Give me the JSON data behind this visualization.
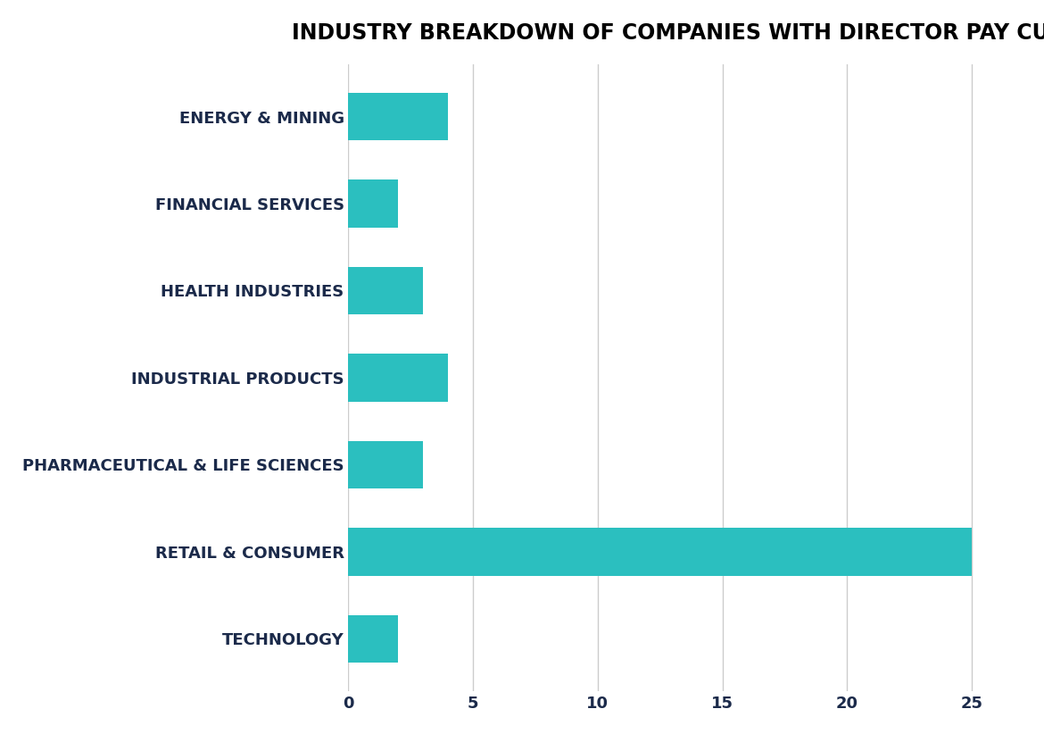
{
  "title": "INDUSTRY BREAKDOWN OF COMPANIES WITH DIRECTOR PAY CUTS",
  "categories": [
    "ENERGY & MINING",
    "FINANCIAL SERVICES",
    "HEALTH INDUSTRIES",
    "INDUSTRIAL PRODUCTS",
    "PHARMACEUTICAL & LIFE SCIENCES",
    "RETAIL & CONSUMER",
    "TECHNOLOGY"
  ],
  "values": [
    4,
    2,
    3,
    4,
    3,
    25,
    2
  ],
  "bar_color": "#2BBFBF",
  "background_color": "#FFFFFF",
  "xlim": [
    0,
    27
  ],
  "xticks": [
    0,
    5,
    10,
    15,
    20,
    25
  ],
  "title_fontsize": 17,
  "label_fontsize": 13,
  "tick_fontsize": 13,
  "label_color": "#1B2A4A",
  "title_color": "#000000",
  "grid_color": "#CCCCCC"
}
